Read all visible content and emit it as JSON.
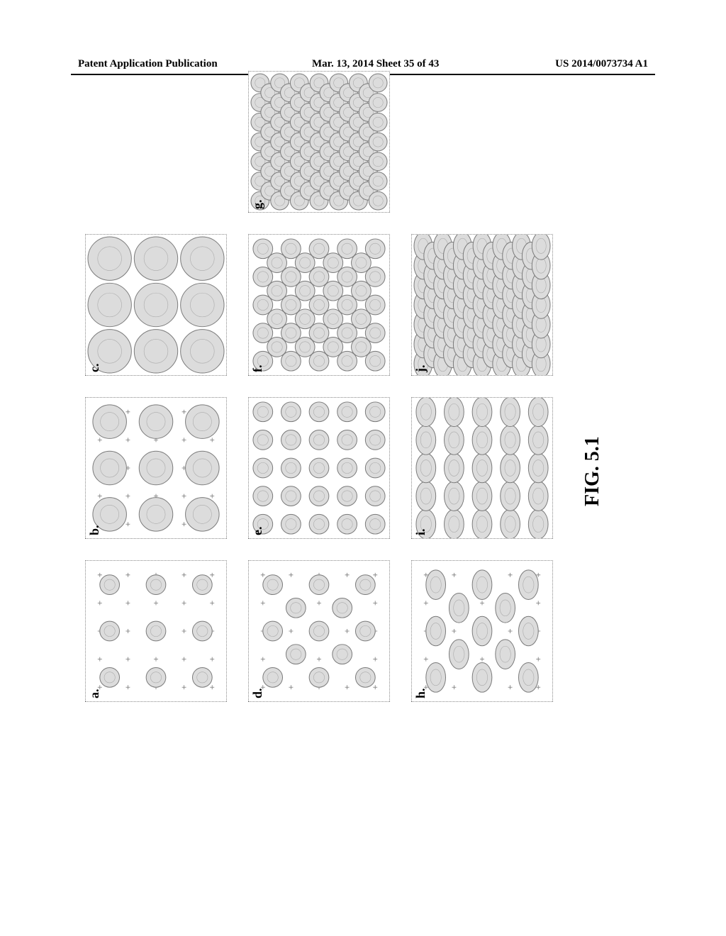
{
  "header": {
    "left": "Patent Application Publication",
    "center": "Mar. 13, 2014  Sheet 35 of 43",
    "right": "US 2014/0073734 A1"
  },
  "figure": {
    "caption": "FIG. 5.1",
    "panel_size": 200,
    "panel_gap": 30,
    "colors": {
      "panel_border": "#888888",
      "circle_stroke": "#7a7a7a",
      "circle_fill": "#dcdcdc",
      "tick": "#777777"
    },
    "panels": [
      {
        "id": "a",
        "row": 0,
        "col": 0,
        "shape": "circle",
        "grid": 3,
        "diam": 28,
        "gap": 66,
        "offset": false,
        "ticks": true
      },
      {
        "id": "b",
        "row": 0,
        "col": 1,
        "shape": "circle",
        "grid": 3,
        "diam": 48,
        "gap": 66,
        "offset": false,
        "ticks": true
      },
      {
        "id": "c",
        "row": 0,
        "col": 2,
        "shape": "circle",
        "grid": 3,
        "diam": 62,
        "gap": 66,
        "offset": false,
        "ticks": false
      },
      {
        "id": "d",
        "row": 1,
        "col": 0,
        "shape": "circle",
        "grid": 3,
        "diam": 28,
        "gap": 66,
        "offset": true,
        "ticks": true
      },
      {
        "id": "e",
        "row": 1,
        "col": 1,
        "shape": "circle",
        "grid": 5,
        "diam": 28,
        "gap": 40,
        "offset": false,
        "ticks": false
      },
      {
        "id": "f",
        "row": 1,
        "col": 2,
        "shape": "circle",
        "grid": 5,
        "diam": 28,
        "gap": 40,
        "offset": true,
        "ticks": false
      },
      {
        "id": "g",
        "row": 1,
        "col": 3,
        "shape": "circle",
        "grid": 7,
        "diam": 26,
        "gap": 28,
        "offset": true,
        "ticks": false
      },
      {
        "id": "h",
        "row": 2,
        "col": 0,
        "shape": "ellipse",
        "grid": 3,
        "diam": 28,
        "gap": 66,
        "offset": true,
        "ticks": true,
        "rx_ratio": 1.5
      },
      {
        "id": "i",
        "row": 2,
        "col": 1,
        "shape": "ellipse",
        "grid": 5,
        "diam": 28,
        "gap": 40,
        "offset": false,
        "ticks": false,
        "rx_ratio": 1.5
      },
      {
        "id": "j",
        "row": 2,
        "col": 2,
        "shape": "ellipse",
        "grid": 7,
        "diam": 26,
        "gap": 28,
        "offset": true,
        "ticks": false,
        "rx_ratio": 1.5
      }
    ]
  }
}
